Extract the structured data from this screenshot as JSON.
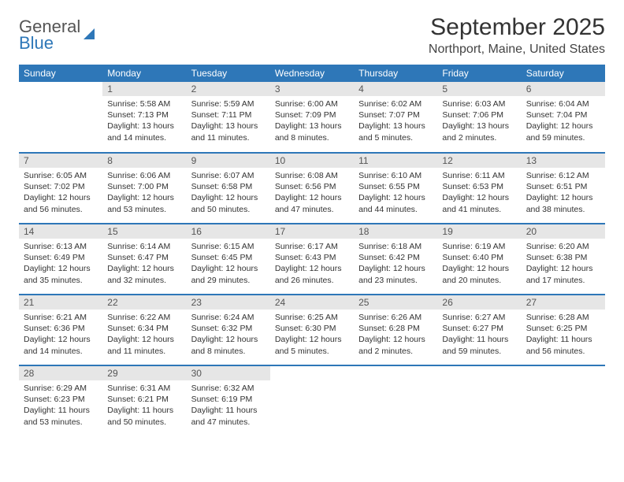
{
  "brand": {
    "line1": "General",
    "line2": "Blue"
  },
  "title": "September 2025",
  "location": "Northport, Maine, United States",
  "colors": {
    "header_bg": "#2e77b8",
    "header_text": "#ffffff",
    "daynum_bg": "#e6e6e6",
    "rule": "#2e77b8",
    "page_bg": "#ffffff",
    "body_text": "#333333"
  },
  "layout": {
    "columns": 7,
    "rows": 5,
    "first_weekday_offset": 1,
    "days_in_month": 30,
    "cell_font_size_pt": 8,
    "header_font_size_pt": 9,
    "title_font_size_pt": 22
  },
  "weekdays": [
    "Sunday",
    "Monday",
    "Tuesday",
    "Wednesday",
    "Thursday",
    "Friday",
    "Saturday"
  ],
  "days": [
    {
      "n": 1,
      "sunrise": "5:58 AM",
      "sunset": "7:13 PM",
      "daylight": "13 hours and 14 minutes."
    },
    {
      "n": 2,
      "sunrise": "5:59 AM",
      "sunset": "7:11 PM",
      "daylight": "13 hours and 11 minutes."
    },
    {
      "n": 3,
      "sunrise": "6:00 AM",
      "sunset": "7:09 PM",
      "daylight": "13 hours and 8 minutes."
    },
    {
      "n": 4,
      "sunrise": "6:02 AM",
      "sunset": "7:07 PM",
      "daylight": "13 hours and 5 minutes."
    },
    {
      "n": 5,
      "sunrise": "6:03 AM",
      "sunset": "7:06 PM",
      "daylight": "13 hours and 2 minutes."
    },
    {
      "n": 6,
      "sunrise": "6:04 AM",
      "sunset": "7:04 PM",
      "daylight": "12 hours and 59 minutes."
    },
    {
      "n": 7,
      "sunrise": "6:05 AM",
      "sunset": "7:02 PM",
      "daylight": "12 hours and 56 minutes."
    },
    {
      "n": 8,
      "sunrise": "6:06 AM",
      "sunset": "7:00 PM",
      "daylight": "12 hours and 53 minutes."
    },
    {
      "n": 9,
      "sunrise": "6:07 AM",
      "sunset": "6:58 PM",
      "daylight": "12 hours and 50 minutes."
    },
    {
      "n": 10,
      "sunrise": "6:08 AM",
      "sunset": "6:56 PM",
      "daylight": "12 hours and 47 minutes."
    },
    {
      "n": 11,
      "sunrise": "6:10 AM",
      "sunset": "6:55 PM",
      "daylight": "12 hours and 44 minutes."
    },
    {
      "n": 12,
      "sunrise": "6:11 AM",
      "sunset": "6:53 PM",
      "daylight": "12 hours and 41 minutes."
    },
    {
      "n": 13,
      "sunrise": "6:12 AM",
      "sunset": "6:51 PM",
      "daylight": "12 hours and 38 minutes."
    },
    {
      "n": 14,
      "sunrise": "6:13 AM",
      "sunset": "6:49 PM",
      "daylight": "12 hours and 35 minutes."
    },
    {
      "n": 15,
      "sunrise": "6:14 AM",
      "sunset": "6:47 PM",
      "daylight": "12 hours and 32 minutes."
    },
    {
      "n": 16,
      "sunrise": "6:15 AM",
      "sunset": "6:45 PM",
      "daylight": "12 hours and 29 minutes."
    },
    {
      "n": 17,
      "sunrise": "6:17 AM",
      "sunset": "6:43 PM",
      "daylight": "12 hours and 26 minutes."
    },
    {
      "n": 18,
      "sunrise": "6:18 AM",
      "sunset": "6:42 PM",
      "daylight": "12 hours and 23 minutes."
    },
    {
      "n": 19,
      "sunrise": "6:19 AM",
      "sunset": "6:40 PM",
      "daylight": "12 hours and 20 minutes."
    },
    {
      "n": 20,
      "sunrise": "6:20 AM",
      "sunset": "6:38 PM",
      "daylight": "12 hours and 17 minutes."
    },
    {
      "n": 21,
      "sunrise": "6:21 AM",
      "sunset": "6:36 PM",
      "daylight": "12 hours and 14 minutes."
    },
    {
      "n": 22,
      "sunrise": "6:22 AM",
      "sunset": "6:34 PM",
      "daylight": "12 hours and 11 minutes."
    },
    {
      "n": 23,
      "sunrise": "6:24 AM",
      "sunset": "6:32 PM",
      "daylight": "12 hours and 8 minutes."
    },
    {
      "n": 24,
      "sunrise": "6:25 AM",
      "sunset": "6:30 PM",
      "daylight": "12 hours and 5 minutes."
    },
    {
      "n": 25,
      "sunrise": "6:26 AM",
      "sunset": "6:28 PM",
      "daylight": "12 hours and 2 minutes."
    },
    {
      "n": 26,
      "sunrise": "6:27 AM",
      "sunset": "6:27 PM",
      "daylight": "11 hours and 59 minutes."
    },
    {
      "n": 27,
      "sunrise": "6:28 AM",
      "sunset": "6:25 PM",
      "daylight": "11 hours and 56 minutes."
    },
    {
      "n": 28,
      "sunrise": "6:29 AM",
      "sunset": "6:23 PM",
      "daylight": "11 hours and 53 minutes."
    },
    {
      "n": 29,
      "sunrise": "6:31 AM",
      "sunset": "6:21 PM",
      "daylight": "11 hours and 50 minutes."
    },
    {
      "n": 30,
      "sunrise": "6:32 AM",
      "sunset": "6:19 PM",
      "daylight": "11 hours and 47 minutes."
    }
  ],
  "labels": {
    "sunrise": "Sunrise:",
    "sunset": "Sunset:",
    "daylight": "Daylight:"
  }
}
